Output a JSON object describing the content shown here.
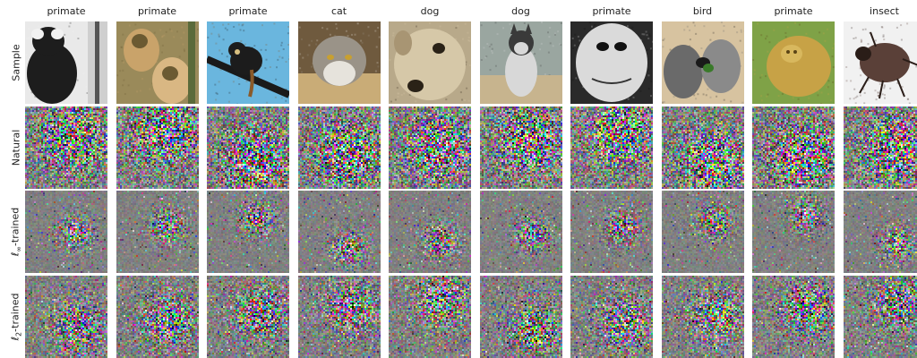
{
  "columns": [
    {
      "label": "primate"
    },
    {
      "label": "primate"
    },
    {
      "label": "primate"
    },
    {
      "label": "cat"
    },
    {
      "label": "dog"
    },
    {
      "label": "dog"
    },
    {
      "label": "primate"
    },
    {
      "label": "bird"
    },
    {
      "label": "primate"
    },
    {
      "label": "insect"
    }
  ],
  "rows": [
    {
      "label": "Sample",
      "kind": "photo"
    },
    {
      "label": "Natural",
      "kind": "noise-natural"
    },
    {
      "label_var": "ℓ",
      "label_sub": "∞",
      "label_rest": "-trained",
      "kind": "noise-linf"
    },
    {
      "label_var": "ℓ",
      "label_sub": "2",
      "label_rest": "-trained",
      "kind": "noise-l2"
    }
  ],
  "samples": [
    {
      "subject": "marmoset",
      "bg": "#e9e9e9",
      "body": "#1d1d1d",
      "accent": "#f2f2f2",
      "grayscale": true
    },
    {
      "subject": "gibbons",
      "bg": "#9a8a5a",
      "body": "#c9a36a",
      "accent": "#6b5a32",
      "grayscale": false
    },
    {
      "subject": "tamarin-on-branch",
      "bg": "#6ab6de",
      "body": "#1c1c1c",
      "accent": "#8a5a2a",
      "grayscale": false
    },
    {
      "subject": "cat-in-box",
      "bg": "#6f5a3e",
      "body": "#9a9388",
      "accent": "#e6e3dc",
      "grayscale": false
    },
    {
      "subject": "dog-face",
      "bg": "#b8a98a",
      "body": "#d6c8a8",
      "accent": "#2a2217",
      "grayscale": false
    },
    {
      "subject": "husky",
      "bg": "#9aa6a0",
      "body": "#d8d8d8",
      "accent": "#3a3a3a",
      "grayscale": false
    },
    {
      "subject": "primate-face-bw",
      "bg": "#2a2a2a",
      "body": "#dadada",
      "accent": "#111111",
      "grayscale": true
    },
    {
      "subject": "parrots",
      "bg": "#d7c3a0",
      "body": "#6a6a6a",
      "accent": "#1a1a1a",
      "grayscale": false
    },
    {
      "subject": "golden-monkey",
      "bg": "#7fa247",
      "body": "#c7a246",
      "accent": "#5a4416",
      "grayscale": false
    },
    {
      "subject": "insect",
      "bg": "#f1f1f1",
      "body": "#5a4038",
      "accent": "#2a1d18",
      "grayscale": false
    }
  ]
}
